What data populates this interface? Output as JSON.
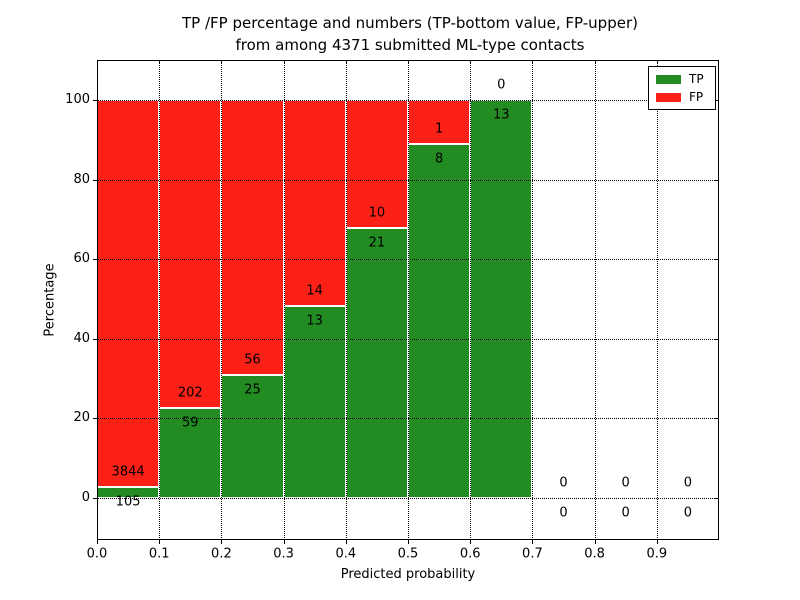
{
  "title": {
    "line1": "TP /FP percentage and numbers (TP-bottom value, FP-upper)",
    "line2": "from among 4371 submitted ML-type contacts"
  },
  "chart_data": {
    "type": "bar",
    "stacked": true,
    "normalized_to_100_percent": true,
    "title": "TP /FP percentage and numbers (TP-bottom value, FP-upper) from among 4371 submitted ML-type contacts",
    "title_lines": [
      "TP /FP percentage and numbers (TP-bottom value, FP-upper)",
      "from among 4371 submitted ML-type contacts"
    ],
    "xlabel": "Predicted probability",
    "ylabel": "Percentage",
    "xlim": [
      0.0,
      1.0
    ],
    "ylim": [
      -10.5,
      110
    ],
    "x_ticks": [
      "0.0",
      "0.1",
      "0.2",
      "0.3",
      "0.4",
      "0.5",
      "0.6",
      "0.7",
      "0.8",
      "0.9"
    ],
    "y_ticks": [
      0,
      20,
      40,
      60,
      80,
      100
    ],
    "grid": "dotted both axes",
    "total_contacts": 4371,
    "legend": {
      "position": "upper right",
      "entries": [
        {
          "label": "TP",
          "color": "#228b22"
        },
        {
          "label": "FP",
          "color": "#fb2116"
        }
      ]
    },
    "bins": [
      {
        "x0": 0.0,
        "x1": 0.1,
        "tp": 105,
        "fp": 3844
      },
      {
        "x0": 0.1,
        "x1": 0.2,
        "tp": 59,
        "fp": 202
      },
      {
        "x0": 0.2,
        "x1": 0.3,
        "tp": 25,
        "fp": 56
      },
      {
        "x0": 0.3,
        "x1": 0.4,
        "tp": 13,
        "fp": 14
      },
      {
        "x0": 0.4,
        "x1": 0.5,
        "tp": 21,
        "fp": 10
      },
      {
        "x0": 0.5,
        "x1": 0.6,
        "tp": 8,
        "fp": 1
      },
      {
        "x0": 0.6,
        "x1": 0.7,
        "tp": 13,
        "fp": 0
      },
      {
        "x0": 0.7,
        "x1": 0.8,
        "tp": 0,
        "fp": 0
      },
      {
        "x0": 0.8,
        "x1": 0.9,
        "tp": 0,
        "fp": 0
      },
      {
        "x0": 0.9,
        "x1": 1.0,
        "tp": 0,
        "fp": 0
      }
    ],
    "tp_percent_by_bin": [
      2.7,
      22.6,
      30.9,
      48.1,
      67.7,
      88.9,
      100,
      0,
      0,
      0
    ]
  }
}
